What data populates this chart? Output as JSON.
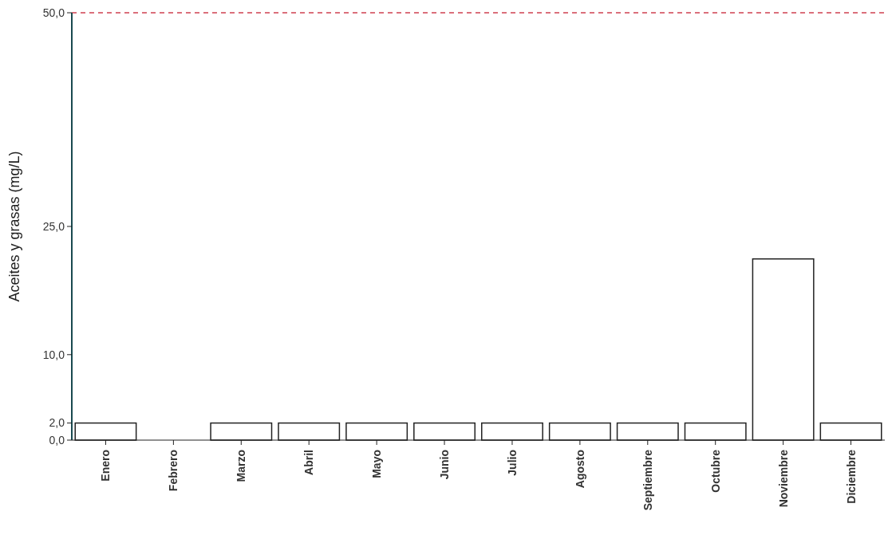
{
  "chart_data": {
    "type": "bar",
    "ylabel": "Aceites y grasas (mg/L)",
    "categories": [
      "Enero",
      "Febrero",
      "Marzo",
      "Abril",
      "Mayo",
      "Junio",
      "Julio",
      "Agosto",
      "Septiembre",
      "Octubre",
      "Noviembre",
      "Diciembre"
    ],
    "values": [
      2,
      0,
      2,
      2,
      2,
      2,
      2,
      2,
      2,
      2,
      21.2,
      2
    ],
    "color": "#ffffff",
    "ylim": [
      0,
      50
    ],
    "yticks": [
      {
        "value": 0,
        "label": "0,0"
      },
      {
        "value": 2,
        "label": "2,0"
      },
      {
        "value": 10,
        "label": "10,0"
      },
      {
        "value": 25,
        "label": "25,0"
      },
      {
        "value": 50,
        "label": "50,0"
      }
    ],
    "ref_lines": [
      {
        "axis": "y",
        "value": 50,
        "color": "#d04050",
        "line_style": "dashed"
      }
    ]
  }
}
